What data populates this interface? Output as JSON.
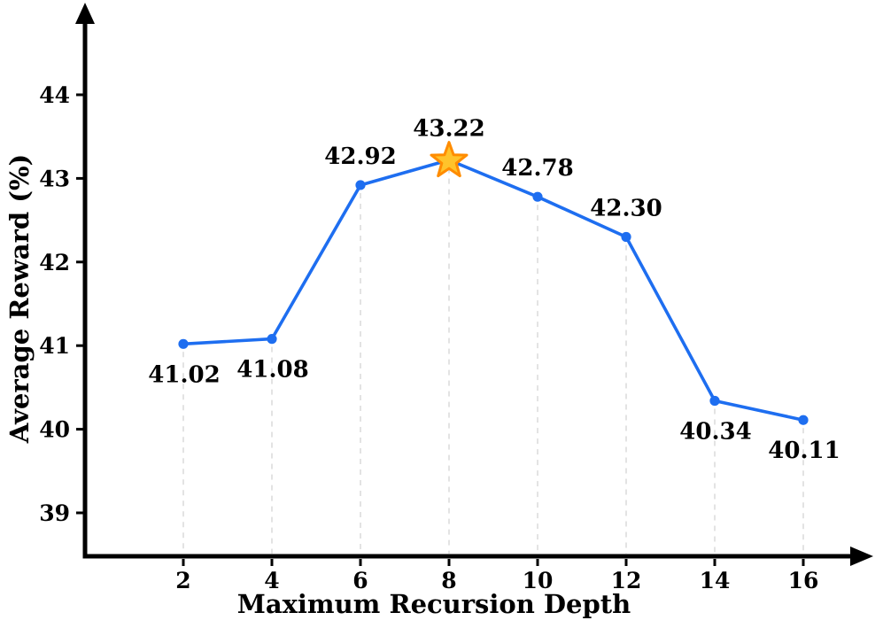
{
  "chart_data": {
    "type": "line",
    "title": "",
    "xlabel": "Maximum Recursion Depth",
    "ylabel": "Average Reward (%)",
    "x": [
      2,
      4,
      6,
      8,
      10,
      12,
      14,
      16
    ],
    "y": [
      41.02,
      41.08,
      42.92,
      43.22,
      42.78,
      42.3,
      40.34,
      40.11
    ],
    "point_labels": [
      "41.02",
      "41.08",
      "42.92",
      "43.22",
      "42.78",
      "42.30",
      "40.34",
      "40.11"
    ],
    "label_placement": [
      "below",
      "below",
      "above",
      "above",
      "above",
      "above",
      "below",
      "below"
    ],
    "highlight_index": 3,
    "highlight_marker": "star",
    "x_ticks": [
      "2",
      "4",
      "6",
      "8",
      "10",
      "12",
      "14",
      "16"
    ],
    "x_tick_values": [
      2,
      4,
      6,
      8,
      10,
      12,
      14,
      16
    ],
    "y_ticks": [
      "39",
      "40",
      "41",
      "42",
      "43",
      "44"
    ],
    "y_tick_values": [
      39,
      40,
      41,
      42,
      43,
      44
    ],
    "xlim": [
      0.2,
      17.6
    ],
    "ylim": [
      38.48,
      45.6
    ],
    "grid": "vertical dashed stems from each point down to x-axis",
    "legend": "none",
    "axes_style": "arrowheads on top of y-axis and right of x-axis",
    "colors": {
      "line": "#1e6ef0",
      "marker": "#1e6ef0",
      "star_fill": "#ffc32b",
      "star_stroke": "#ff8c00",
      "grid": "#dcdcdc",
      "axis": "#000000",
      "text": "#000000",
      "background": "#ffffff"
    }
  }
}
